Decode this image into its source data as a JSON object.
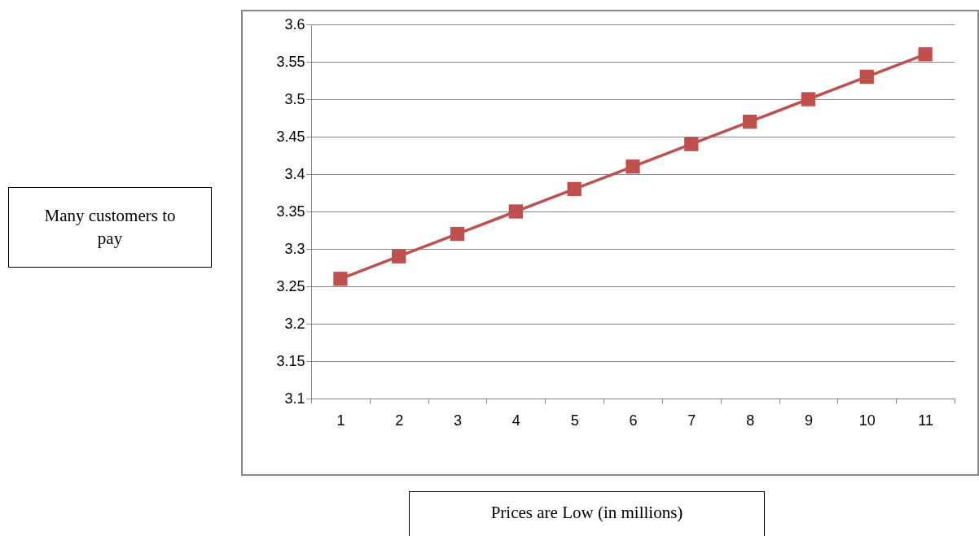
{
  "chart_data": {
    "type": "line",
    "xlabel": "Prices are Low (in millions)",
    "annotations": [
      "Many customers to pay"
    ],
    "categories": [
      "1",
      "2",
      "3",
      "4",
      "5",
      "6",
      "7",
      "8",
      "9",
      "10",
      "11"
    ],
    "series": [
      {
        "color": "#c0504d",
        "values": [
          3.26,
          3.29,
          3.32,
          3.35,
          3.38,
          3.41,
          3.44,
          3.47,
          3.5,
          3.53,
          3.56
        ]
      }
    ],
    "ylim": [
      3.1,
      3.6
    ],
    "yticks": [
      3.1,
      3.15,
      3.2,
      3.25,
      3.3,
      3.35,
      3.4,
      3.45,
      3.5,
      3.55,
      3.6
    ],
    "grid": "y",
    "marker": "square"
  }
}
